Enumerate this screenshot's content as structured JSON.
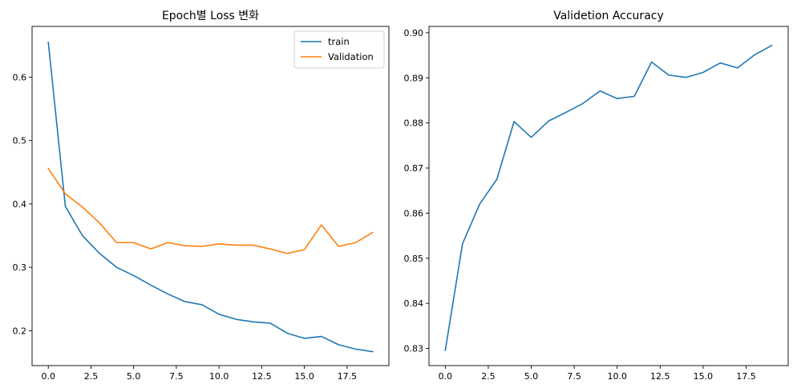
{
  "chart_data": [
    {
      "type": "line",
      "title": "Epoch별 Loss 변화",
      "xlabel": "",
      "ylabel": "",
      "x": [
        0,
        1,
        2,
        3,
        4,
        5,
        6,
        7,
        8,
        9,
        10,
        11,
        12,
        13,
        14,
        15,
        16,
        17,
        18,
        19
      ],
      "xlim": [
        -0.95,
        19.95
      ],
      "ylim": [
        0.145,
        0.68
      ],
      "xticks": [
        0,
        2.5,
        5,
        7.5,
        10,
        12.5,
        15,
        17.5
      ],
      "xtick_labels": [
        "0.0",
        "2.5",
        "5.0",
        "7.5",
        "10.0",
        "12.5",
        "15.0",
        "17.5"
      ],
      "yticks": [
        0.2,
        0.3,
        0.4,
        0.5,
        0.6
      ],
      "ytick_labels": [
        "0.2",
        "0.3",
        "0.4",
        "0.5",
        "0.6"
      ],
      "grid": false,
      "legend_position": "top-right",
      "series": [
        {
          "name": "train",
          "color": "#1f77b4",
          "values": [
            0.655,
            0.396,
            0.35,
            0.322,
            0.3,
            0.287,
            0.272,
            0.258,
            0.246,
            0.241,
            0.226,
            0.218,
            0.214,
            0.212,
            0.196,
            0.188,
            0.191,
            0.178,
            0.171,
            0.167
          ]
        },
        {
          "name": "Validation",
          "color": "#ff7f0e",
          "values": [
            0.456,
            0.416,
            0.395,
            0.37,
            0.339,
            0.339,
            0.329,
            0.339,
            0.334,
            0.333,
            0.337,
            0.335,
            0.335,
            0.329,
            0.322,
            0.328,
            0.367,
            0.333,
            0.339,
            0.355
          ]
        }
      ]
    },
    {
      "type": "line",
      "title": "Validetion Accuracy",
      "xlabel": "",
      "ylabel": "",
      "x": [
        0,
        1,
        2,
        3,
        4,
        5,
        6,
        7,
        8,
        9,
        10,
        11,
        12,
        13,
        14,
        15,
        16,
        17,
        18,
        19
      ],
      "xlim": [
        -0.95,
        19.95
      ],
      "ylim": [
        0.8262,
        0.9014
      ],
      "xticks": [
        0,
        2.5,
        5,
        7.5,
        10,
        12.5,
        15,
        17.5
      ],
      "xtick_labels": [
        "0.0",
        "2.5",
        "5.0",
        "7.5",
        "10.0",
        "12.5",
        "15.0",
        "17.5"
      ],
      "yticks": [
        0.83,
        0.84,
        0.85,
        0.86,
        0.87,
        0.88,
        0.89,
        0.9
      ],
      "ytick_labels": [
        "0.83",
        "0.84",
        "0.85",
        "0.86",
        "0.87",
        "0.88",
        "0.89",
        "0.90"
      ],
      "grid": false,
      "series": [
        {
          "color": "#1f77b4",
          "values": [
            0.8296,
            0.8532,
            0.862,
            0.8675,
            0.8803,
            0.8768,
            0.8804,
            0.8823,
            0.8843,
            0.8871,
            0.8854,
            0.8859,
            0.8935,
            0.8906,
            0.8901,
            0.8912,
            0.8933,
            0.8922,
            0.8951,
            0.8972
          ]
        }
      ]
    }
  ]
}
